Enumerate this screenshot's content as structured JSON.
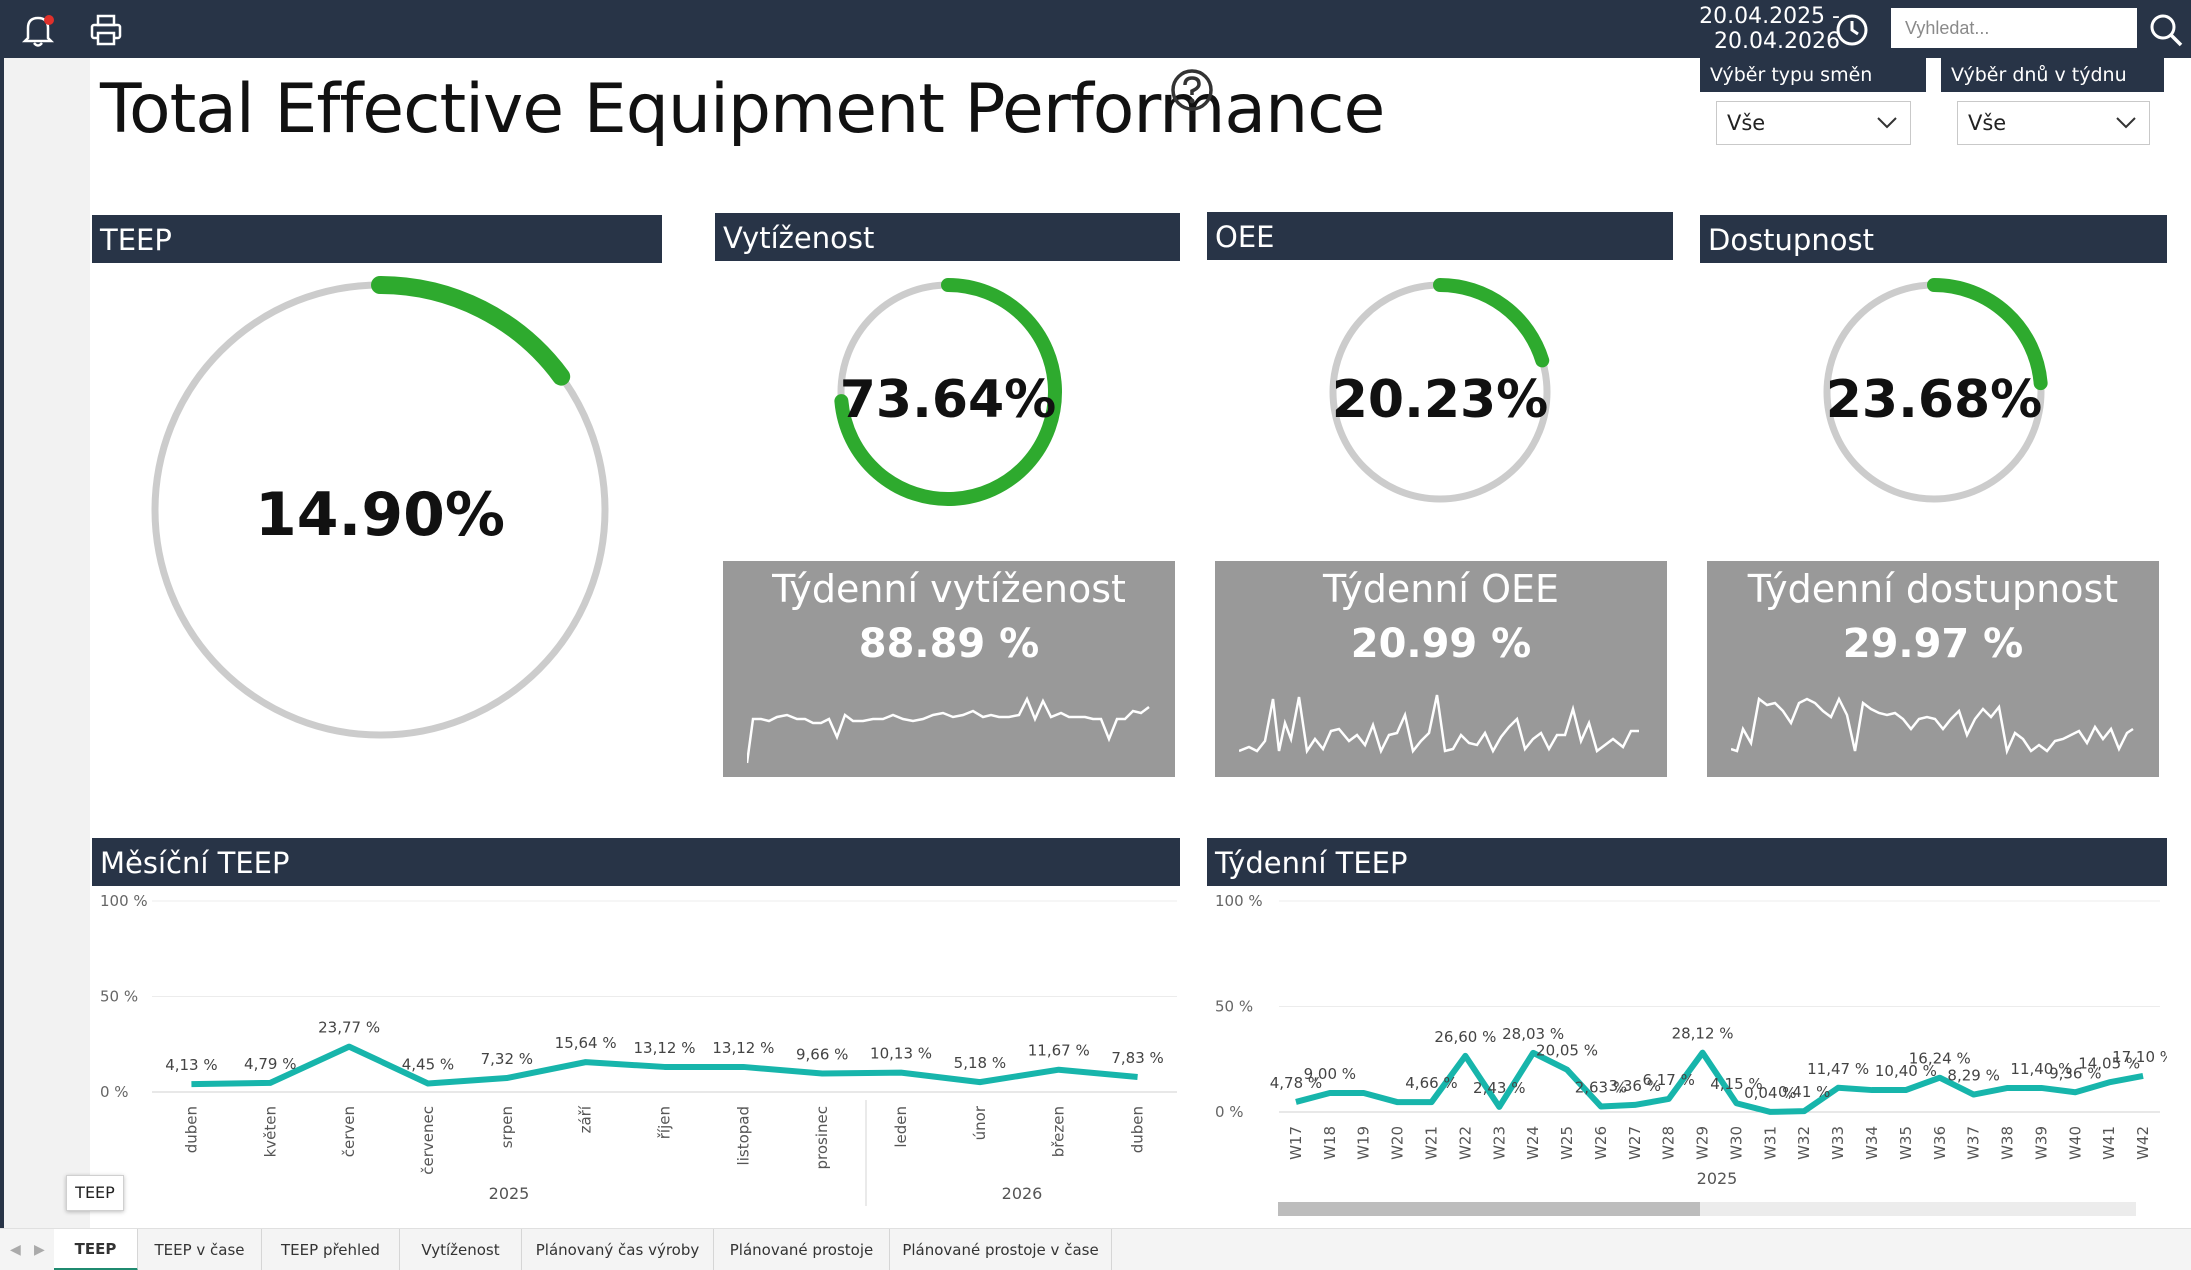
{
  "topbar": {
    "date_range": "20.04.2025 - 20.04.2026",
    "search_placeholder": "Vyhledat..."
  },
  "page": {
    "title": "Total Effective Equipment Performance"
  },
  "slicers": [
    {
      "label": "Výběr typu směn",
      "value": "Vše"
    },
    {
      "label": "Výběr dnů v týdnu",
      "value": "Vše"
    }
  ],
  "gauges": {
    "teep": {
      "header": "TEEP",
      "value": "14.90%",
      "fraction": 0.149
    },
    "vytizenost": {
      "header": "Vytíženost",
      "value": "73.64%",
      "fraction": 0.7364
    },
    "oee": {
      "header": "OEE",
      "value": "20.23%",
      "fraction": 0.2023
    },
    "dostupnost": {
      "header": "Dostupnost",
      "value": "23.68%",
      "fraction": 0.2368
    }
  },
  "kpi_cards": [
    {
      "title": "Týdenní vytíženost",
      "value": "88.89 %"
    },
    {
      "title": "Týdenní OEE",
      "value": "20.99 %"
    },
    {
      "title": "Týdenní dostupnost",
      "value": "29.97 %"
    }
  ],
  "colors": {
    "header_bg": "#283447",
    "gauge_fill": "#2eaa2e",
    "gauge_track": "#cccccc",
    "line": "#17b5ab",
    "card_bg": "#999999"
  },
  "chart_data": [
    {
      "type": "line",
      "title": "Měsíční TEEP",
      "categories": [
        "duben",
        "květen",
        "červen",
        "červenec",
        "srpen",
        "září",
        "říjen",
        "listopad",
        "prosinec",
        "leden",
        "únor",
        "březen",
        "duben"
      ],
      "values": [
        4.13,
        4.79,
        23.77,
        4.45,
        7.32,
        15.64,
        13.12,
        13.12,
        9.66,
        10.13,
        5.18,
        11.67,
        7.83
      ],
      "labels": [
        "4,13 %",
        "4,79 %",
        "23,77 %",
        "4,45 %",
        "7,32 %",
        "15,64 %",
        "13,12 %",
        "13,12 %",
        "9,66 %",
        "10,13 %",
        "5,18 %",
        "11,67 %",
        "7,83 %"
      ],
      "year_groups": [
        {
          "label": "2025"
        },
        {
          "label": "2026"
        }
      ],
      "y_ticks": [
        "100 %",
        "50 %",
        "0 %"
      ],
      "ylim": [
        0,
        100
      ]
    },
    {
      "type": "line",
      "title": "Týdenní TEEP",
      "categories": [
        "W17",
        "W18",
        "W19",
        "W20",
        "W21",
        "W22",
        "W23",
        "W24",
        "W25",
        "W26",
        "W27",
        "W28",
        "W29",
        "W30",
        "W31",
        "W32",
        "W33",
        "W34",
        "W35",
        "W36",
        "W37",
        "W38",
        "W39",
        "W40",
        "W41",
        "W42"
      ],
      "values": [
        4.78,
        9.0,
        9.0,
        4.66,
        4.66,
        26.6,
        2.43,
        28.03,
        20.05,
        2.63,
        3.36,
        6.17,
        28.12,
        4.15,
        0.04,
        0.41,
        11.47,
        10.4,
        10.4,
        16.24,
        8.29,
        11.4,
        11.4,
        9.36,
        14.05,
        17.1
      ],
      "labels": [
        "4,78 %",
        "9,00 %",
        "",
        "",
        "4,66 %",
        "26,60 %",
        "2,43 %",
        "28,03 %",
        "20,05 %",
        "2,63 %",
        "3,36 %",
        "6,17 %",
        "28,12 %",
        "4,15 %",
        "0,04 %",
        "0,41 %",
        "11,47 %",
        "",
        "10,40 %",
        "16,24 %",
        "8,29 %",
        "",
        "11,40 %",
        "9,36 %",
        "14,05 %",
        "17,10 %"
      ],
      "year_label": "2025",
      "y_ticks": [
        "100 %",
        "50 %",
        "0 %"
      ],
      "ylim": [
        0,
        100
      ]
    }
  ],
  "tooltip": {
    "text": "TEEP"
  },
  "tabs": [
    "TEEP",
    "TEEP v čase",
    "TEEP přehled",
    "Vytíženost",
    "Plánovaný čas výroby",
    "Plánované prostoje",
    "Plánované prostoje v čase"
  ]
}
